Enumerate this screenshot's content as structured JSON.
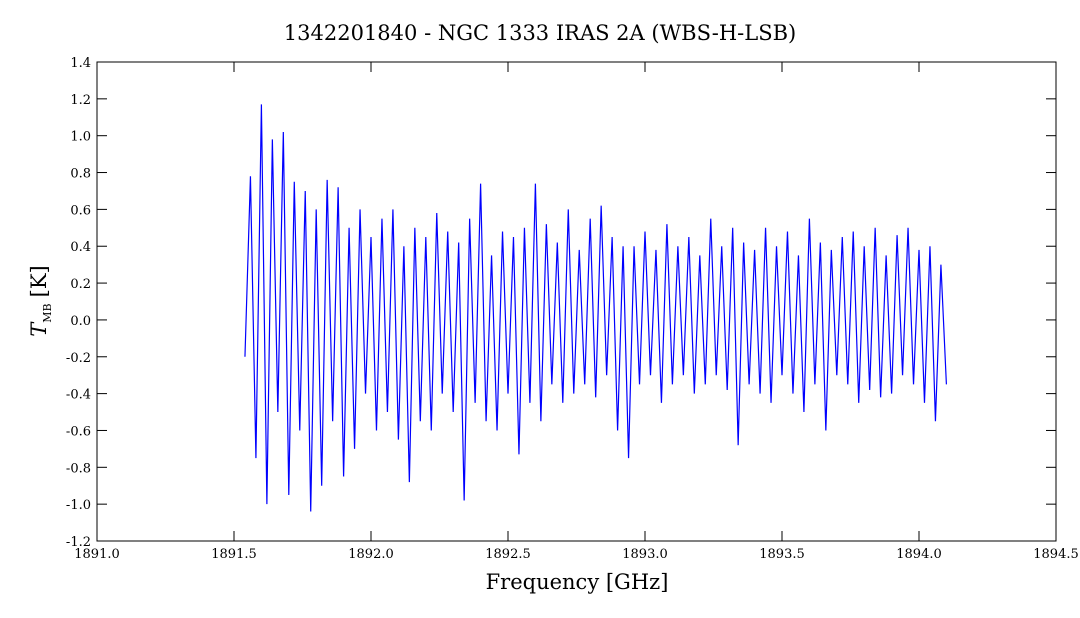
{
  "chart_data": {
    "type": "line",
    "title": "1342201840 - NGC 1333 IRAS 2A (WBS-H-LSB)",
    "xlabel": "Frequency [GHz]",
    "ylabel": {
      "symbol": "T",
      "subscript": "MB",
      "unit": "[K]"
    },
    "xlim": [
      1891.0,
      1894.5
    ],
    "xticks": [
      {
        "value": 1891.0,
        "label": "1891.0"
      },
      1891.5,
      {
        "value": 1892.0,
        "label": "1892.0"
      },
      1892.5,
      {
        "value": 1893.0,
        "label": "1893.0"
      },
      1893.5,
      {
        "value": 1894.0,
        "label": "1894.0"
      },
      1894.5
    ],
    "ylim": [
      -1.2,
      1.4
    ],
    "yticks": [
      -1.2,
      {
        "value": -1.0,
        "label": "-1.0"
      },
      -0.8,
      -0.6,
      -0.4,
      -0.2,
      {
        "value": 0.0,
        "label": "0.0"
      },
      0.2,
      0.4,
      0.6,
      0.8,
      {
        "value": 1.0,
        "label": "1.0"
      },
      1.2,
      1.4
    ],
    "x": [
      1891.54,
      1891.56,
      1891.58,
      1891.6,
      1891.62,
      1891.64,
      1891.66,
      1891.68,
      1891.7,
      1891.72,
      1891.74,
      1891.76,
      1891.78,
      1891.8,
      1891.82,
      1891.84,
      1891.86,
      1891.88,
      1891.9,
      1891.92,
      1891.94,
      1891.96,
      1891.98,
      1892.0,
      1892.02,
      1892.04,
      1892.06,
      1892.08,
      1892.1,
      1892.12,
      1892.14,
      1892.16,
      1892.18,
      1892.2,
      1892.22,
      1892.24,
      1892.26,
      1892.28,
      1892.3,
      1892.32,
      1892.34,
      1892.36,
      1892.38,
      1892.4,
      1892.42,
      1892.44,
      1892.46,
      1892.48,
      1892.5,
      1892.52,
      1892.54,
      1892.56,
      1892.58,
      1892.6,
      1892.62,
      1892.64,
      1892.66,
      1892.68,
      1892.7,
      1892.72,
      1892.74,
      1892.76,
      1892.78,
      1892.8,
      1892.82,
      1892.84,
      1892.86,
      1892.88,
      1892.9,
      1892.92,
      1892.94,
      1892.96,
      1892.98,
      1893.0,
      1893.02,
      1893.04,
      1893.06,
      1893.08,
      1893.1,
      1893.12,
      1893.14,
      1893.16,
      1893.18,
      1893.2,
      1893.22,
      1893.24,
      1893.26,
      1893.28,
      1893.3,
      1893.32,
      1893.34,
      1893.36,
      1893.38,
      1893.4,
      1893.42,
      1893.44,
      1893.46,
      1893.48,
      1893.5,
      1893.52,
      1893.54,
      1893.56,
      1893.58,
      1893.6,
      1893.62,
      1893.64,
      1893.66,
      1893.68,
      1893.7,
      1893.72,
      1893.74,
      1893.76,
      1893.78,
      1893.8,
      1893.82,
      1893.84,
      1893.86,
      1893.88,
      1893.9,
      1893.92,
      1893.94,
      1893.96,
      1893.98,
      1894.0,
      1894.02,
      1894.04,
      1894.06,
      1894.08,
      1894.1
    ],
    "series": [
      {
        "color": "#0000ff",
        "values": [
          -0.2,
          0.78,
          -0.75,
          1.17,
          -1.0,
          0.98,
          -0.5,
          1.02,
          -0.95,
          0.75,
          -0.6,
          0.7,
          -1.04,
          0.6,
          -0.9,
          0.76,
          -0.55,
          0.72,
          -0.85,
          0.5,
          -0.7,
          0.6,
          -0.4,
          0.45,
          -0.6,
          0.55,
          -0.5,
          0.6,
          -0.65,
          0.4,
          -0.88,
          0.5,
          -0.55,
          0.45,
          -0.6,
          0.58,
          -0.4,
          0.48,
          -0.5,
          0.42,
          -0.98,
          0.55,
          -0.45,
          0.74,
          -0.55,
          0.35,
          -0.6,
          0.48,
          -0.4,
          0.45,
          -0.73,
          0.5,
          -0.45,
          0.74,
          -0.55,
          0.52,
          -0.35,
          0.42,
          -0.45,
          0.6,
          -0.4,
          0.38,
          -0.35,
          0.55,
          -0.42,
          0.62,
          -0.3,
          0.45,
          -0.6,
          0.4,
          -0.75,
          0.4,
          -0.35,
          0.48,
          -0.3,
          0.38,
          -0.45,
          0.52,
          -0.35,
          0.4,
          -0.3,
          0.45,
          -0.4,
          0.35,
          -0.35,
          0.55,
          -0.3,
          0.4,
          -0.38,
          0.5,
          -0.68,
          0.42,
          -0.35,
          0.38,
          -0.4,
          0.5,
          -0.45,
          0.4,
          -0.3,
          0.48,
          -0.4,
          0.35,
          -0.5,
          0.55,
          -0.35,
          0.42,
          -0.6,
          0.38,
          -0.3,
          0.45,
          -0.35,
          0.48,
          -0.45,
          0.4,
          -0.38,
          0.5,
          -0.42,
          0.35,
          -0.4,
          0.46,
          -0.3,
          0.5,
          -0.35,
          0.38,
          -0.45,
          0.4,
          -0.55,
          0.3,
          -0.35
        ]
      }
    ]
  }
}
